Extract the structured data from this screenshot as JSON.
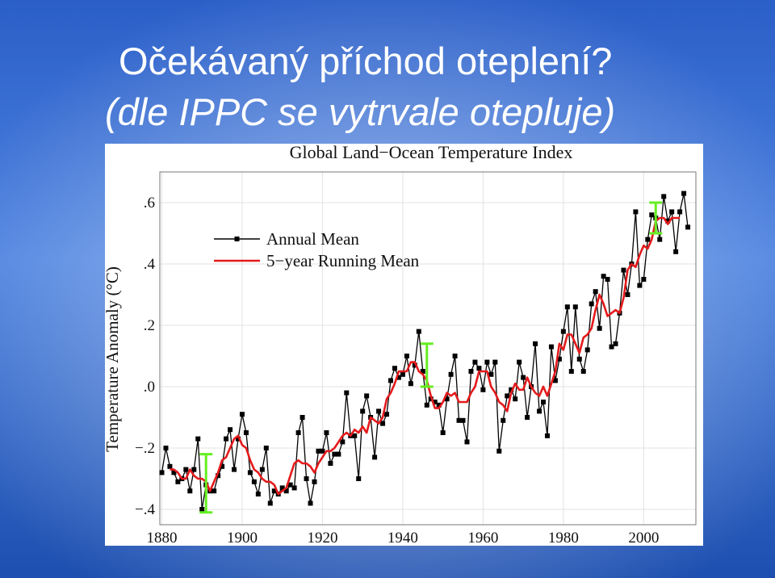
{
  "title_lines": [
    "Očekávaný příchod oteplení?",
    "(dle IPPC se vytrvale otepluje)"
  ],
  "chart_data": {
    "type": "line",
    "title": "Global Land−Ocean Temperature Index",
    "y_label": "Temperature Anomaly (°C)",
    "x": [
      1880,
      1881,
      1882,
      1883,
      1884,
      1885,
      1886,
      1887,
      1888,
      1889,
      1890,
      1891,
      1892,
      1893,
      1894,
      1895,
      1896,
      1897,
      1898,
      1899,
      1900,
      1901,
      1902,
      1903,
      1904,
      1905,
      1906,
      1907,
      1908,
      1909,
      1910,
      1911,
      1912,
      1913,
      1914,
      1915,
      1916,
      1917,
      1918,
      1919,
      1920,
      1921,
      1922,
      1923,
      1924,
      1925,
      1926,
      1927,
      1928,
      1929,
      1930,
      1931,
      1932,
      1933,
      1934,
      1935,
      1936,
      1937,
      1938,
      1939,
      1940,
      1941,
      1942,
      1943,
      1944,
      1945,
      1946,
      1947,
      1948,
      1949,
      1950,
      1951,
      1952,
      1953,
      1954,
      1955,
      1956,
      1957,
      1958,
      1959,
      1960,
      1961,
      1962,
      1963,
      1964,
      1965,
      1966,
      1967,
      1968,
      1969,
      1970,
      1971,
      1972,
      1973,
      1974,
      1975,
      1976,
      1977,
      1978,
      1979,
      1980,
      1981,
      1982,
      1983,
      1984,
      1985,
      1986,
      1987,
      1988,
      1989,
      1990,
      1991,
      1992,
      1993,
      1994,
      1995,
      1996,
      1997,
      1998,
      1999,
      2000,
      2001,
      2002,
      2003,
      2004,
      2005,
      2006,
      2007,
      2008,
      2009,
      2010,
      2011
    ],
    "series": [
      {
        "name": "Annual Mean",
        "color": "#000000",
        "markers": true,
        "values": [
          -0.28,
          -0.2,
          -0.26,
          -0.28,
          -0.31,
          -0.3,
          -0.27,
          -0.34,
          -0.27,
          -0.17,
          -0.4,
          -0.32,
          -0.34,
          -0.34,
          -0.29,
          -0.26,
          -0.17,
          -0.14,
          -0.27,
          -0.17,
          -0.09,
          -0.15,
          -0.28,
          -0.31,
          -0.35,
          -0.27,
          -0.2,
          -0.38,
          -0.34,
          -0.35,
          -0.33,
          -0.34,
          -0.32,
          -0.33,
          -0.15,
          -0.1,
          -0.3,
          -0.38,
          -0.31,
          -0.21,
          -0.21,
          -0.15,
          -0.25,
          -0.22,
          -0.22,
          -0.18,
          -0.02,
          -0.16,
          -0.16,
          -0.3,
          -0.08,
          -0.03,
          -0.1,
          -0.23,
          -0.08,
          -0.12,
          -0.09,
          0.02,
          0.06,
          0.03,
          0.04,
          0.1,
          0.01,
          0.07,
          0.18,
          0.05,
          -0.06,
          -0.04,
          -0.05,
          -0.06,
          -0.15,
          -0.04,
          0.04,
          0.1,
          -0.11,
          -0.11,
          -0.18,
          0.05,
          0.08,
          0.06,
          -0.01,
          0.08,
          0.04,
          0.08,
          -0.21,
          -0.11,
          -0.03,
          -0.01,
          -0.04,
          0.08,
          0.03,
          -0.1,
          0.0,
          0.14,
          -0.08,
          -0.05,
          -0.16,
          0.13,
          0.02,
          0.09,
          0.18,
          0.26,
          0.05,
          0.26,
          0.09,
          0.05,
          0.12,
          0.27,
          0.31,
          0.19,
          0.36,
          0.35,
          0.13,
          0.14,
          0.24,
          0.38,
          0.3,
          0.4,
          0.57,
          0.33,
          0.35,
          0.48,
          0.56,
          0.55,
          0.48,
          0.62,
          0.54,
          0.57,
          0.44,
          0.57,
          0.63,
          0.52
        ]
      },
      {
        "name": "5−year Running Mean",
        "color": "#e41a1c",
        "markers": false,
        "values": [
          null,
          null,
          -0.27,
          -0.27,
          -0.28,
          -0.3,
          -0.3,
          -0.27,
          -0.29,
          -0.3,
          -0.3,
          -0.31,
          -0.34,
          -0.31,
          -0.28,
          -0.24,
          -0.23,
          -0.2,
          -0.17,
          -0.16,
          -0.19,
          -0.2,
          -0.24,
          -0.27,
          -0.28,
          -0.3,
          -0.31,
          -0.31,
          -0.32,
          -0.35,
          -0.34,
          -0.33,
          -0.29,
          -0.25,
          -0.24,
          -0.25,
          -0.25,
          -0.26,
          -0.28,
          -0.25,
          -0.23,
          -0.21,
          -0.21,
          -0.2,
          -0.18,
          -0.16,
          -0.15,
          -0.16,
          -0.14,
          -0.15,
          -0.13,
          -0.15,
          -0.1,
          -0.11,
          -0.12,
          -0.1,
          -0.04,
          -0.02,
          0.01,
          0.05,
          0.05,
          0.05,
          0.08,
          0.08,
          0.05,
          0.04,
          0.02,
          -0.03,
          -0.07,
          -0.07,
          -0.05,
          -0.02,
          -0.03,
          -0.02,
          -0.05,
          -0.05,
          -0.05,
          -0.02,
          0.0,
          0.05,
          0.05,
          0.05,
          0.0,
          -0.02,
          -0.05,
          -0.06,
          -0.08,
          -0.02,
          0.01,
          -0.01,
          -0.01,
          0.03,
          0.0,
          -0.02,
          -0.03,
          0.0,
          -0.03,
          0.01,
          0.05,
          0.14,
          0.12,
          0.17,
          0.17,
          0.14,
          0.11,
          0.16,
          0.17,
          0.19,
          0.25,
          0.3,
          0.27,
          0.23,
          0.24,
          0.25,
          0.24,
          0.29,
          0.38,
          0.4,
          0.39,
          0.43,
          0.46,
          0.45,
          0.48,
          0.54,
          0.55,
          0.55,
          0.53,
          0.55,
          0.55,
          0.55,
          null,
          null
        ]
      }
    ],
    "error_bars": [
      {
        "x": 1891,
        "low": -0.41,
        "high": -0.22,
        "color": "#66ee22"
      },
      {
        "x": 1946,
        "low": 0.0,
        "high": 0.14,
        "color": "#66ee22"
      },
      {
        "x": 2003,
        "low": 0.5,
        "high": 0.6,
        "color": "#66ee22"
      }
    ],
    "xlim": [
      1879.5,
      2013
    ],
    "xticks": [
      1880,
      1900,
      1920,
      1940,
      1960,
      1980,
      2000
    ],
    "ylim": [
      -0.45,
      0.7
    ],
    "yticks": [
      {
        "value": -0.4,
        "label": "−.4"
      },
      {
        "value": -0.2,
        "label": "−.2"
      },
      {
        "value": 0,
        "label": ".0"
      },
      {
        "value": 0.2,
        "label": ".2"
      },
      {
        "value": 0.4,
        "label": ".4"
      },
      {
        "value": 0.6,
        "label": ".6"
      }
    ],
    "grid": true,
    "legend": "upper left"
  }
}
